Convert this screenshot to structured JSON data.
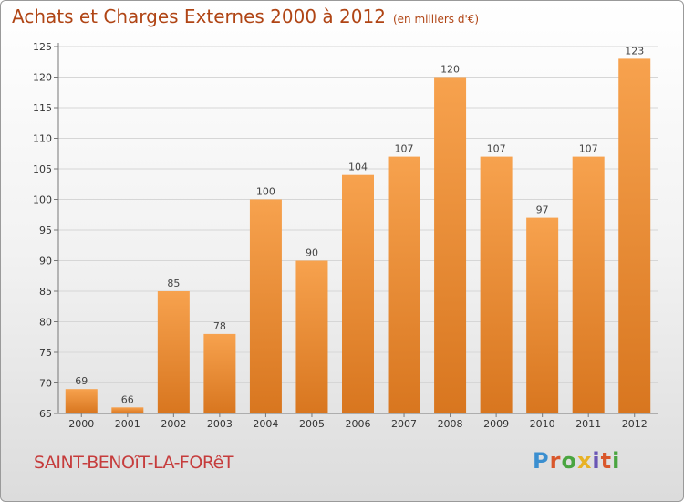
{
  "title": "Achats et Charges Externes 2000 à 2012",
  "unit": "(en milliers d'€)",
  "commune": "SAINT-BENOîT-LA-FORêT",
  "logo": {
    "letters": [
      "P",
      "r",
      "o",
      "x",
      "i",
      "t",
      "i"
    ],
    "colors": [
      "#3b8fd0",
      "#d9572b",
      "#4aa540",
      "#e8b225",
      "#6a56b5",
      "#d9572b",
      "#4aa540"
    ]
  },
  "colors": {
    "bar_top": "#f7a24e",
    "bar_bottom": "#d8761f",
    "title": "#b04515",
    "commune": "#c63c3c"
  },
  "chart_data": {
    "type": "bar",
    "categories": [
      "2000",
      "2001",
      "2002",
      "2003",
      "2004",
      "2005",
      "2006",
      "2007",
      "2008",
      "2009",
      "2010",
      "2011",
      "2012"
    ],
    "values": [
      69,
      66,
      85,
      78,
      100,
      90,
      104,
      107,
      120,
      107,
      97,
      107,
      123
    ],
    "ylim": [
      65,
      125
    ],
    "yticks": [
      65,
      70,
      75,
      80,
      85,
      90,
      95,
      100,
      105,
      110,
      115,
      120,
      125
    ],
    "grid": true
  }
}
